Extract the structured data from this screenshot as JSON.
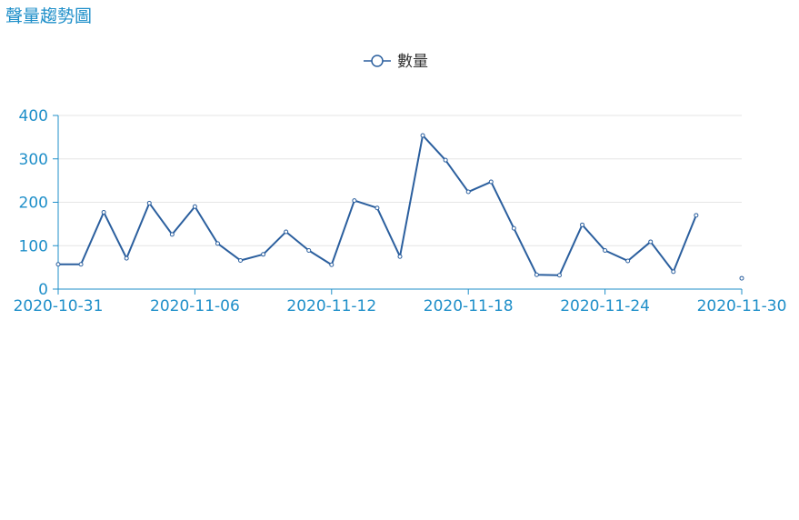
{
  "title": "聲量趨勢圖",
  "colors": {
    "title": "#1f8fc9",
    "axis": "#1f8fc9",
    "series": "#2b5f9e",
    "grid": "#e6e6e6"
  },
  "chart_data": {
    "type": "line",
    "title": "聲量趨勢圖",
    "legend_position": "top-center",
    "grid": true,
    "x": [
      "2020-10-31",
      "2020-11-01",
      "2020-11-02",
      "2020-11-03",
      "2020-11-04",
      "2020-11-05",
      "2020-11-06",
      "2020-11-07",
      "2020-11-08",
      "2020-11-09",
      "2020-11-10",
      "2020-11-11",
      "2020-11-12",
      "2020-11-13",
      "2020-11-14",
      "2020-11-15",
      "2020-11-16",
      "2020-11-17",
      "2020-11-18",
      "2020-11-19",
      "2020-11-20",
      "2020-11-21",
      "2020-11-22",
      "2020-11-23",
      "2020-11-24",
      "2020-11-25",
      "2020-11-26",
      "2020-11-27",
      "2020-11-28",
      "2020-11-29",
      "2020-11-30"
    ],
    "x_ticks": [
      "2020-10-31",
      "2020-11-06",
      "2020-11-12",
      "2020-11-18",
      "2020-11-24",
      "2020-11-30"
    ],
    "ylim": [
      0,
      400
    ],
    "y_ticks": [
      0,
      100,
      200,
      300,
      400
    ],
    "series": [
      {
        "name": "數量",
        "values": [
          57,
          57,
          177,
          71,
          198,
          126,
          190,
          105,
          66,
          80,
          132,
          89,
          56,
          204,
          187,
          75,
          354,
          297,
          224,
          247,
          140,
          33,
          32,
          148,
          89,
          65,
          109,
          40,
          170,
          null,
          25
        ]
      }
    ]
  }
}
